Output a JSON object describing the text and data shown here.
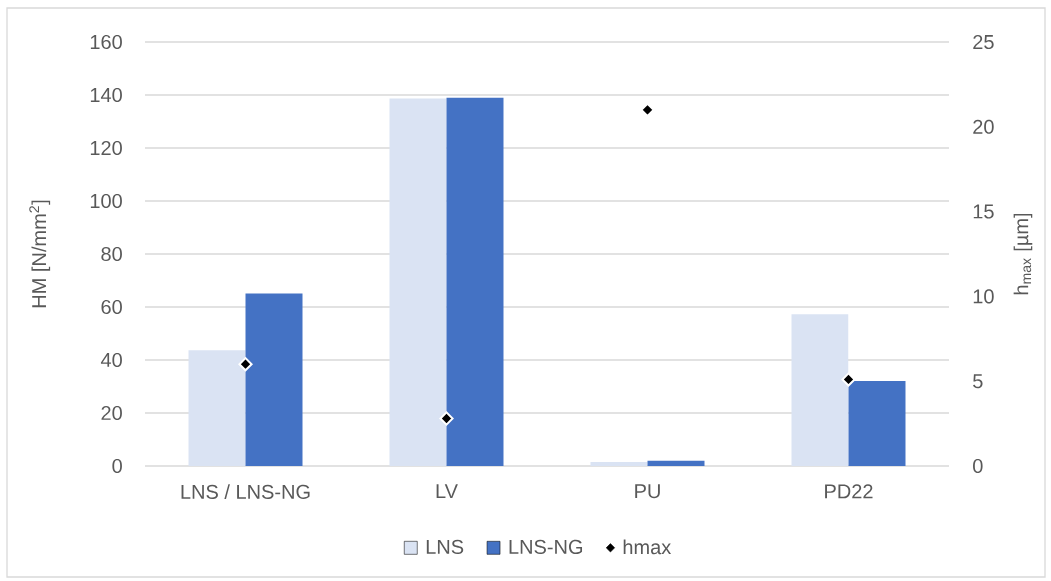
{
  "chart_data": {
    "type": "bar",
    "categories": [
      "LNS / LNS-NG",
      "LV",
      "PU",
      "PD22"
    ],
    "series": [
      {
        "name": "LNS",
        "color": "#dae3f3",
        "values": [
          43.7,
          138.7,
          1.5,
          57.3
        ]
      },
      {
        "name": "LNS-NG",
        "color": "#4472c4",
        "values": [
          65.1,
          139.0,
          2.0,
          32.1
        ]
      },
      {
        "name": "hmax",
        "type": "scatter",
        "axis": "y2",
        "marker": "diamond",
        "color": "#000000",
        "x": [
          "LNS / LNS-NG",
          "LV",
          "PU",
          "PD22"
        ],
        "values": [
          6.0,
          2.8,
          21.0,
          5.1
        ]
      }
    ],
    "ylabel": "HM [N/mm$^{2}$]",
    "y2label": "h$_{max}$ [µm]",
    "ylim": [
      0,
      160
    ],
    "yticks": [
      0,
      20,
      40,
      60,
      80,
      100,
      120,
      140,
      160
    ],
    "y2lim": [
      0,
      25
    ],
    "y2ticks": [
      0,
      5,
      10,
      15,
      20,
      25
    ],
    "grid": "y",
    "legend": "bottom"
  }
}
